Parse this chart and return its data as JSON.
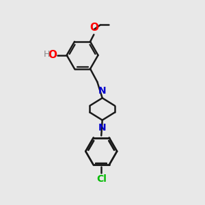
{
  "bg_color": "#e8e8e8",
  "bond_color": "#1a1a1a",
  "bond_width": 1.8,
  "atom_colors": {
    "O": "#ff0000",
    "N": "#0000cc",
    "Cl": "#00bb00",
    "H": "#888888",
    "C": "#1a1a1a"
  },
  "font_size": 9,
  "fig_size": [
    3.0,
    3.0
  ],
  "dpi": 100,
  "xlim": [
    0,
    10
  ],
  "ylim": [
    0,
    10
  ]
}
